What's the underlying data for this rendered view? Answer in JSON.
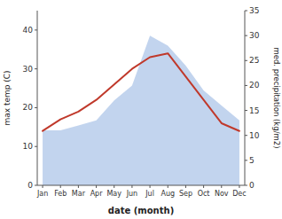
{
  "chart_data": {
    "type": "line",
    "categories": [
      "Jan",
      "Feb",
      "Mar",
      "Apr",
      "May",
      "Jun",
      "Jul",
      "Aug",
      "Sep",
      "Oct",
      "Nov",
      "Dec"
    ],
    "series": [
      {
        "type": "area",
        "axis": "y2",
        "color": "#aec6e8",
        "values": [
          11,
          11,
          12,
          13,
          17,
          20,
          30,
          28,
          24,
          19,
          16,
          13
        ]
      },
      {
        "type": "line",
        "color": "#c0392b",
        "values": [
          14,
          17,
          19,
          22,
          26,
          30,
          33,
          34,
          28,
          22,
          16,
          14
        ]
      }
    ],
    "x_label": "date (month)",
    "y_label": "max temp (C)",
    "y2_label": "med. precipitation (kg/m2)",
    "ylim": [
      0,
      45
    ],
    "yticks": [
      0,
      10,
      20,
      30,
      40
    ],
    "y2lim": [
      0,
      35
    ],
    "y2ticks": [
      0,
      5,
      10,
      15,
      20,
      25,
      30,
      35
    ],
    "grid": false
  }
}
